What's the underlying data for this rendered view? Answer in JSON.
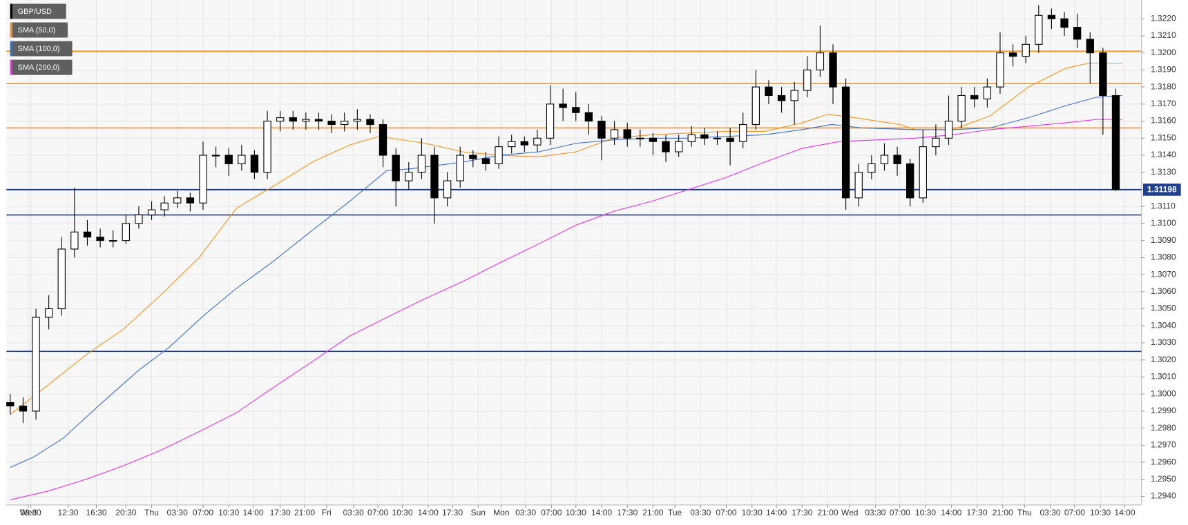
{
  "chart_data": {
    "type": "candlestick",
    "xlim": [
      -0.3,
      88
    ],
    "ylim": [
      1.2935,
      1.3231
    ],
    "yticks": [
      {
        "value": 1.294,
        "label": "1.2940"
      },
      {
        "value": 1.295,
        "label": "1.2950"
      },
      {
        "value": 1.296,
        "label": "1.2960"
      },
      {
        "value": 1.297,
        "label": "1.2970"
      },
      {
        "value": 1.298,
        "label": "1.2980"
      },
      {
        "value": 1.299,
        "label": "1.2990"
      },
      {
        "value": 1.3,
        "label": "1.3000"
      },
      {
        "value": 1.301,
        "label": "1.3010"
      },
      {
        "value": 1.302,
        "label": "1.3020"
      },
      {
        "value": 1.303,
        "label": "1.3030"
      },
      {
        "value": 1.304,
        "label": "1.3040"
      },
      {
        "value": 1.305,
        "label": "1.3050"
      },
      {
        "value": 1.306,
        "label": "1.3060"
      },
      {
        "value": 1.307,
        "label": "1.3070"
      },
      {
        "value": 1.308,
        "label": "1.3080"
      },
      {
        "value": 1.309,
        "label": "1.3090"
      },
      {
        "value": 1.31,
        "label": "1.3100"
      },
      {
        "value": 1.311,
        "label": "1.3110"
      },
      {
        "value": 1.312,
        "label": "1.3120"
      },
      {
        "value": 1.313,
        "label": "1.3130"
      },
      {
        "value": 1.314,
        "label": "1.3140"
      },
      {
        "value": 1.315,
        "label": "1.3150"
      },
      {
        "value": 1.316,
        "label": "1.3160"
      },
      {
        "value": 1.317,
        "label": "1.3170"
      },
      {
        "value": 1.318,
        "label": "1.3180"
      },
      {
        "value": 1.319,
        "label": "1.3190"
      },
      {
        "value": 1.32,
        "label": "1.3200"
      },
      {
        "value": 1.321,
        "label": "1.3210"
      },
      {
        "value": 1.322,
        "label": "1.3220"
      }
    ],
    "xticks": [
      {
        "value": 1.4,
        "label": "Wed"
      },
      {
        "value": 1.6,
        "label": "08:30"
      },
      {
        "value": 4.5,
        "label": "12:30"
      },
      {
        "value": 6.7,
        "label": "16:30"
      },
      {
        "value": 9.0,
        "label": "20:30"
      },
      {
        "value": 11.0,
        "label": "Thu"
      },
      {
        "value": 13.0,
        "label": "03:30"
      },
      {
        "value": 15.0,
        "label": "07:00"
      },
      {
        "value": 17.0,
        "label": "10:30"
      },
      {
        "value": 18.9,
        "label": "14:00"
      },
      {
        "value": 21.0,
        "label": "17:30"
      },
      {
        "value": 22.9,
        "label": "21:00"
      },
      {
        "value": 24.6,
        "label": "Fri"
      },
      {
        "value": 26.7,
        "label": "03:30"
      },
      {
        "value": 28.6,
        "label": "07:00"
      },
      {
        "value": 30.5,
        "label": "10:30"
      },
      {
        "value": 32.5,
        "label": "14:00"
      },
      {
        "value": 34.4,
        "label": "17:30"
      },
      {
        "value": 36.4,
        "label": "Sun"
      },
      {
        "value": 38.2,
        "label": "Mon"
      },
      {
        "value": 40.1,
        "label": "03:30"
      },
      {
        "value": 42.1,
        "label": "07:00"
      },
      {
        "value": 44.0,
        "label": "10:30"
      },
      {
        "value": 46.0,
        "label": "14:00"
      },
      {
        "value": 48.0,
        "label": "17:30"
      },
      {
        "value": 50.0,
        "label": "21:00"
      },
      {
        "value": 51.7,
        "label": "Tue"
      },
      {
        "value": 53.7,
        "label": "03:30"
      },
      {
        "value": 55.7,
        "label": "07:00"
      },
      {
        "value": 57.7,
        "label": "10:30"
      },
      {
        "value": 59.6,
        "label": "14:00"
      },
      {
        "value": 61.6,
        "label": "17:30"
      },
      {
        "value": 63.6,
        "label": "21:00"
      },
      {
        "value": 65.3,
        "label": "Wed"
      },
      {
        "value": 67.3,
        "label": "03:30"
      },
      {
        "value": 69.2,
        "label": "07:00"
      },
      {
        "value": 71.2,
        "label": "10:30"
      },
      {
        "value": 73.2,
        "label": "14:00"
      },
      {
        "value": 75.2,
        "label": "17:30"
      },
      {
        "value": 77.2,
        "label": "21:00"
      },
      {
        "value": 78.9,
        "label": "Thu"
      },
      {
        "value": 80.9,
        "label": "03:30"
      },
      {
        "value": 82.8,
        "label": "07:00"
      },
      {
        "value": 84.8,
        "label": "10:30"
      },
      {
        "value": 86.7,
        "label": "14:00"
      }
    ],
    "grid": true,
    "x": [
      0,
      1,
      2,
      3,
      4,
      5,
      6,
      7,
      8,
      9,
      10,
      11,
      12,
      13,
      14,
      15,
      16,
      17,
      18,
      19,
      20,
      21,
      22,
      23,
      24,
      25,
      26,
      27,
      28,
      29,
      30,
      31,
      32,
      33,
      34,
      35,
      36,
      37,
      38,
      39,
      40,
      41,
      42,
      43,
      44,
      45,
      46,
      47,
      48,
      49,
      50,
      51,
      52,
      53,
      54,
      55,
      56,
      57,
      58,
      59,
      60,
      61,
      62,
      63,
      64,
      65,
      66,
      67,
      68,
      69,
      70,
      71,
      72,
      73,
      74,
      75,
      76,
      77,
      78,
      79,
      80,
      81,
      82,
      83,
      84,
      85,
      86
    ],
    "series": [
      {
        "name": "GBP/USD",
        "color": "#000000",
        "up_color": "#ffffff",
        "open": [
          1.2995,
          1.2993,
          1.299,
          1.3045,
          1.305,
          1.3085,
          1.3095,
          1.3092,
          1.309,
          1.309,
          1.31,
          1.3105,
          1.3108,
          1.3112,
          1.3115,
          1.3112,
          1.314,
          1.314,
          1.3135,
          1.314,
          1.313,
          1.316,
          1.3162,
          1.316,
          1.3161,
          1.316,
          1.3158,
          1.316,
          1.3161,
          1.3158,
          1.314,
          1.3125,
          1.313,
          1.314,
          1.3115,
          1.3125,
          1.314,
          1.3138,
          1.3135,
          1.3145,
          1.3148,
          1.3146,
          1.315,
          1.317,
          1.3168,
          1.3165,
          1.316,
          1.315,
          1.3155,
          1.315,
          1.315,
          1.3148,
          1.3142,
          1.3148,
          1.3152,
          1.315,
          1.315,
          1.3148,
          1.3158,
          1.318,
          1.3175,
          1.3172,
          1.3178,
          1.319,
          1.32,
          1.318,
          1.3115,
          1.313,
          1.3135,
          1.314,
          1.3135,
          1.3115,
          1.3145,
          1.315,
          1.316,
          1.3175,
          1.3173,
          1.318,
          1.32,
          1.3198,
          1.3205,
          1.3222,
          1.322,
          1.3215,
          1.3208,
          1.32,
          1.3175
        ],
        "high": [
          1.3,
          1.2998,
          1.305,
          1.3058,
          1.3092,
          1.3121,
          1.3102,
          1.3097,
          1.3096,
          1.3105,
          1.311,
          1.3113,
          1.3116,
          1.3119,
          1.3118,
          1.3148,
          1.3145,
          1.3144,
          1.3146,
          1.3143,
          1.3166,
          1.3166,
          1.3166,
          1.3165,
          1.3165,
          1.3164,
          1.3165,
          1.3167,
          1.3164,
          1.3161,
          1.3144,
          1.3136,
          1.315,
          1.3145,
          1.313,
          1.3145,
          1.3143,
          1.3142,
          1.3151,
          1.3152,
          1.3151,
          1.3155,
          1.3181,
          1.3179,
          1.3177,
          1.317,
          1.3163,
          1.316,
          1.3159,
          1.3155,
          1.3153,
          1.3152,
          1.3152,
          1.3157,
          1.3156,
          1.3154,
          1.3156,
          1.3165,
          1.319,
          1.3184,
          1.318,
          1.3183,
          1.3198,
          1.3216,
          1.3205,
          1.3185,
          1.3135,
          1.314,
          1.3147,
          1.3145,
          1.3138,
          1.3155,
          1.3158,
          1.3175,
          1.318,
          1.318,
          1.3185,
          1.3212,
          1.3205,
          1.321,
          1.3228,
          1.3226,
          1.3224,
          1.3223,
          1.3212,
          1.3203,
          1.3179
        ],
        "low": [
          1.2988,
          1.2983,
          1.2985,
          1.3038,
          1.3046,
          1.308,
          1.3087,
          1.3086,
          1.3086,
          1.3088,
          1.3097,
          1.3102,
          1.3104,
          1.3109,
          1.3107,
          1.3108,
          1.3133,
          1.3128,
          1.3131,
          1.3126,
          1.3126,
          1.3154,
          1.3155,
          1.3155,
          1.3155,
          1.3153,
          1.3154,
          1.3155,
          1.3153,
          1.3133,
          1.311,
          1.312,
          1.3126,
          1.31,
          1.311,
          1.3121,
          1.3133,
          1.3131,
          1.3132,
          1.3141,
          1.3142,
          1.3142,
          1.3146,
          1.316,
          1.316,
          1.3152,
          1.3137,
          1.3146,
          1.3145,
          1.3145,
          1.314,
          1.3136,
          1.3139,
          1.3145,
          1.3146,
          1.3146,
          1.3134,
          1.3144,
          1.3155,
          1.317,
          1.3165,
          1.3158,
          1.3174,
          1.3186,
          1.317,
          1.3108,
          1.311,
          1.3126,
          1.3131,
          1.3128,
          1.311,
          1.3112,
          1.314,
          1.3146,
          1.3156,
          1.3168,
          1.3168,
          1.3176,
          1.3192,
          1.3194,
          1.32,
          1.3214,
          1.321,
          1.3203,
          1.3182,
          1.3152,
          1.3119
        ],
        "close": [
          1.2993,
          1.299,
          1.3045,
          1.305,
          1.3085,
          1.3095,
          1.3092,
          1.309,
          1.309,
          1.31,
          1.3105,
          1.3108,
          1.3112,
          1.3115,
          1.3112,
          1.314,
          1.314,
          1.3135,
          1.314,
          1.313,
          1.316,
          1.3162,
          1.316,
          1.3161,
          1.316,
          1.3158,
          1.316,
          1.3161,
          1.3158,
          1.314,
          1.3125,
          1.313,
          1.314,
          1.3115,
          1.3125,
          1.314,
          1.3138,
          1.3135,
          1.3145,
          1.3148,
          1.3146,
          1.315,
          1.317,
          1.3168,
          1.3165,
          1.316,
          1.315,
          1.3155,
          1.315,
          1.315,
          1.3148,
          1.3142,
          1.3148,
          1.3152,
          1.315,
          1.315,
          1.3148,
          1.3158,
          1.318,
          1.3175,
          1.3172,
          1.3178,
          1.319,
          1.32,
          1.318,
          1.3115,
          1.313,
          1.3135,
          1.314,
          1.3135,
          1.3115,
          1.3145,
          1.315,
          1.316,
          1.3175,
          1.3173,
          1.318,
          1.32,
          1.3198,
          1.3205,
          1.3222,
          1.322,
          1.3215,
          1.3208,
          1.32,
          1.3175,
          1.312
        ]
      }
    ],
    "sma": [
      {
        "name": "SMA (50,0)",
        "color": "#f7931e",
        "x": [
          0,
          2.9,
          5.9,
          8.8,
          11.7,
          14.7,
          17.6,
          20.5,
          23.5,
          26.4,
          28.7,
          32.3,
          35.2,
          38.1,
          41.1,
          44.0,
          46.9,
          49.9,
          52.8,
          55.7,
          58.7,
          61.6,
          63.6,
          65.7,
          69.2,
          70.4,
          73.3,
          76.2,
          79.2,
          82.1,
          83.9,
          84.8,
          86.5
        ],
        "values": [
          1.2988,
          1.3005,
          1.3023,
          1.3038,
          1.3058,
          1.308,
          1.3109,
          1.3122,
          1.3136,
          1.3146,
          1.3151,
          1.3147,
          1.3142,
          1.314,
          1.3139,
          1.3142,
          1.315,
          1.3152,
          1.3153,
          1.3154,
          1.3154,
          1.3159,
          1.3164,
          1.3162,
          1.3158,
          1.3155,
          1.3155,
          1.3163,
          1.318,
          1.3191,
          1.3194,
          1.3194,
          1.3194
        ]
      },
      {
        "name": "SMA (100,0)",
        "color": "#3a6fc4",
        "x": [
          0,
          1.8,
          4.1,
          7.0,
          10.0,
          12.3,
          15.2,
          17.6,
          20.5,
          23.5,
          26.4,
          29.3,
          31.1,
          35.2,
          38.1,
          41.1,
          44.0,
          46.9,
          49.9,
          52.8,
          55.7,
          58.7,
          61.6,
          63.9,
          66.3,
          70.4,
          73.3,
          76.2,
          79.2,
          82.1,
          84.5,
          86.5
        ],
        "values": [
          1.2957,
          1.2963,
          1.2974,
          1.2994,
          1.3014,
          1.3027,
          1.3047,
          1.3062,
          1.3078,
          1.3096,
          1.3113,
          1.3131,
          1.3132,
          1.3136,
          1.314,
          1.3142,
          1.3147,
          1.3149,
          1.315,
          1.315,
          1.3151,
          1.3152,
          1.3155,
          1.3158,
          1.3156,
          1.3155,
          1.3155,
          1.3156,
          1.3162,
          1.3169,
          1.3174,
          1.3175
        ]
      },
      {
        "name": "SMA (200,0)",
        "color": "#e632e6",
        "x": [
          0,
          2.9,
          5.9,
          8.8,
          11.7,
          14.7,
          17.6,
          20.5,
          23.5,
          26.4,
          29.3,
          32.3,
          35.2,
          38.1,
          41.1,
          44.0,
          46.9,
          49.9,
          52.8,
          55.7,
          58.7,
          61.6,
          64.5,
          67.4,
          70.4,
          73.3,
          76.2,
          79.2,
          82.1,
          84.5,
          86.5
        ],
        "values": [
          1.2938,
          1.2943,
          1.295,
          1.2958,
          1.2967,
          1.2978,
          1.2989,
          1.3004,
          1.3019,
          1.3034,
          1.3045,
          1.3056,
          1.3066,
          1.3077,
          1.3088,
          1.3099,
          1.3107,
          1.3113,
          1.312,
          1.3127,
          1.3136,
          1.3144,
          1.3148,
          1.3149,
          1.315,
          1.3152,
          1.3155,
          1.3157,
          1.3159,
          1.3161,
          1.3161
        ]
      }
    ],
    "levels": [
      {
        "value": 1.3201,
        "color": "#f7931e"
      },
      {
        "value": 1.3182,
        "color": "#f7931e"
      },
      {
        "value": 1.3156,
        "color": "#f7931e"
      },
      {
        "value": 1.3105,
        "color": "#1f3f8f"
      },
      {
        "value": 1.3025,
        "color": "#1f3f8f"
      }
    ],
    "last_price": 1.31198,
    "last_price_color": "#1f3f8f"
  }
}
